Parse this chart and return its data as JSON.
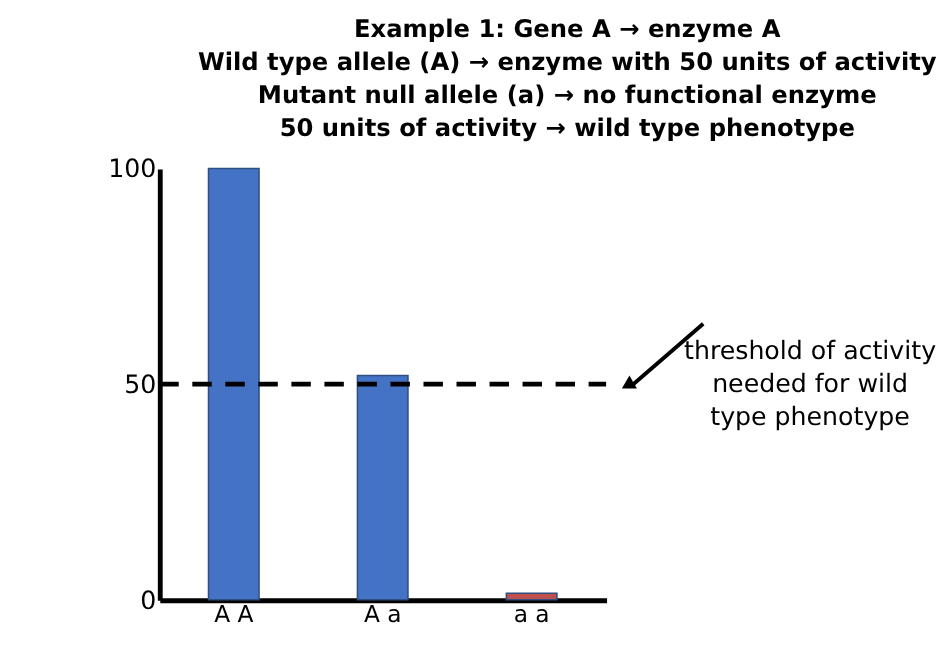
{
  "chart_data": {
    "type": "bar",
    "title": [
      "Example 1: Gene A → enzyme A",
      "Wild type allele (A) → enzyme with 50 units of activity",
      "Mutant null allele (a) → no functional enzyme",
      "50 units of activity → wild type phenotype"
    ],
    "categories": [
      "A A",
      "A a",
      "a a"
    ],
    "values": [
      100,
      52,
      1.5
    ],
    "colors": [
      "#4472c4",
      "#4472c4",
      "#c0504d"
    ],
    "ylim": [
      0,
      100
    ],
    "yticks": [
      0,
      50,
      100
    ],
    "grid": false,
    "ref_lines": [
      {
        "axis": "y",
        "value": 50,
        "label": [
          "threshold of activity",
          "needed for wild",
          "type phenotype"
        ],
        "color": "#000000",
        "line_style": "dashed"
      }
    ]
  }
}
